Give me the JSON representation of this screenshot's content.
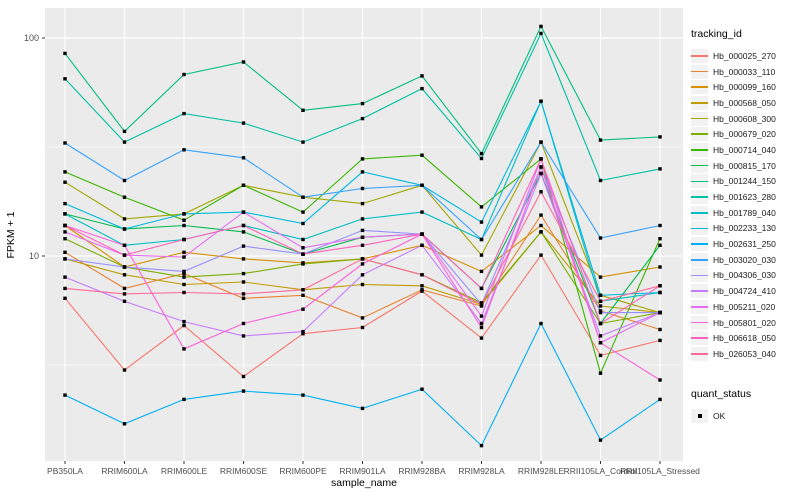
{
  "chart_data": {
    "type": "line",
    "title": "",
    "xlabel": "sample_name",
    "ylabel": "FPKM + 1",
    "y_scale": "log10",
    "ylim": [
      1.15,
      137
    ],
    "grid": true,
    "panel_bg": "#EBEBEB",
    "grid_color": "#FFFFFF",
    "point_color": "#000000",
    "tick_label_color": "#4D4D4D",
    "legend_position": "right",
    "legend_title": "tracking_id",
    "quant_legend": {
      "title": "quant_status",
      "items": [
        "OK"
      ]
    },
    "y_ticks": [
      {
        "value": 10,
        "label": "10"
      },
      {
        "value": 100,
        "label": "100"
      }
    ],
    "y_minor_ticks": [
      3.1623,
      31.623
    ],
    "categories": [
      "PB350LA",
      "RRIM600LA",
      "RRIM600LE",
      "RRIM600SE",
      "RRIM600PE",
      "RRIM901LA",
      "RRIM928BA",
      "RRIM928LA",
      "RRIM928LE",
      "RRII105LA_Control",
      "RRII105LA_Stressed"
    ],
    "series": [
      {
        "name": "Hb_000025_270",
        "color": "#F8766D",
        "values": [
          6.4,
          3.0,
          4.8,
          2.8,
          4.4,
          4.7,
          6.9,
          4.2,
          10.1,
          3.5,
          4.1
        ]
      },
      {
        "name": "Hb_000033_110",
        "color": "#EA8331",
        "values": [
          10.4,
          7.1,
          8.3,
          6.4,
          6.6,
          5.2,
          7.0,
          5.9,
          15.4,
          5.6,
          4.6
        ]
      },
      {
        "name": "Hb_000099_160",
        "color": "#D89000",
        "values": [
          13.8,
          8.9,
          10.4,
          9.7,
          9.3,
          9.7,
          11.2,
          8.5,
          13.8,
          8.0,
          8.9
        ]
      },
      {
        "name": "Hb_000568_050",
        "color": "#C09B00",
        "values": [
          9.7,
          8.2,
          7.4,
          7.6,
          7.0,
          7.4,
          7.3,
          6.0,
          12.9,
          5.9,
          5.5
        ]
      },
      {
        "name": "Hb_000608_300",
        "color": "#A3A500",
        "values": [
          21.8,
          14.8,
          15.6,
          21.1,
          18.6,
          17.4,
          21.1,
          10.1,
          33.3,
          6.6,
          5.5
        ]
      },
      {
        "name": "Hb_000679_020",
        "color": "#7CAE00",
        "values": [
          12.0,
          8.9,
          8.0,
          8.3,
          9.2,
          9.7,
          8.2,
          6.1,
          12.9,
          4.9,
          5.5
        ]
      },
      {
        "name": "Hb_000714_040",
        "color": "#39B600",
        "values": [
          24.3,
          18.6,
          14.6,
          21.1,
          15.9,
          27.9,
          29.0,
          16.8,
          27.9,
          2.9,
          12.0
        ]
      },
      {
        "name": "Hb_000815_170",
        "color": "#00BB4E",
        "values": [
          15.6,
          13.3,
          13.8,
          12.9,
          10.2,
          12.2,
          12.6,
          7.1,
          23.9,
          4.9,
          11.2
        ]
      },
      {
        "name": "Hb_001244_150",
        "color": "#00BF7D",
        "values": [
          85,
          37.3,
          68,
          77.6,
          46.6,
          50,
          67,
          29.5,
          113,
          34,
          35.2
        ]
      },
      {
        "name": "Hb_001623_280",
        "color": "#00C1A3",
        "values": [
          65,
          33.3,
          45,
          40.7,
          33.3,
          42.7,
          58.6,
          28,
          105,
          22.2,
          25.1
        ]
      },
      {
        "name": "Hb_001789_040",
        "color": "#00BFC4",
        "values": [
          15.6,
          11.2,
          11.9,
          13.8,
          11.9,
          14.8,
          15.9,
          11.9,
          51.3,
          6.2,
          6.8
        ]
      },
      {
        "name": "Hb_002233_130",
        "color": "#00BAE0",
        "values": [
          17.4,
          13.3,
          15.6,
          15.9,
          14.1,
          24.3,
          21.1,
          14.3,
          51.3,
          6.6,
          6.8
        ]
      },
      {
        "name": "Hb_002631_250",
        "color": "#00B0F6",
        "values": [
          2.3,
          1.7,
          2.2,
          2.4,
          2.3,
          2.0,
          2.45,
          1.35,
          4.9,
          1.43,
          2.2
        ]
      },
      {
        "name": "Hb_003020_030",
        "color": "#35A2FF",
        "values": [
          33,
          22.2,
          30.7,
          28.2,
          18.6,
          20.4,
          21.1,
          11.9,
          33.3,
          12.1,
          13.8
        ]
      },
      {
        "name": "Hb_004306_030",
        "color": "#9590FF",
        "values": [
          9.7,
          8.9,
          8.5,
          11.1,
          10.2,
          13.1,
          12.6,
          6.0,
          25.6,
          5.5,
          5.5
        ]
      },
      {
        "name": "Hb_004724_410",
        "color": "#C77CFF",
        "values": [
          8.0,
          6.2,
          5.0,
          4.3,
          4.5,
          8.2,
          11.2,
          4.9,
          23.9,
          4.3,
          5.5
        ]
      },
      {
        "name": "Hb_005211_020",
        "color": "#E76BF3",
        "values": [
          12.9,
          10.1,
          9.9,
          15.9,
          10.9,
          12.2,
          12.6,
          5.3,
          27.9,
          4.0,
          5.5
        ]
      },
      {
        "name": "Hb_005801_020",
        "color": "#FA62DB",
        "values": [
          13.8,
          11.2,
          3.75,
          4.9,
          5.7,
          9.2,
          12.6,
          4.7,
          25.6,
          4.0,
          2.7
        ]
      },
      {
        "name": "Hb_006618_050",
        "color": "#FF62BC",
        "values": [
          13.8,
          10.1,
          11.9,
          13.8,
          10.2,
          11.2,
          12.6,
          7.1,
          27.9,
          4.9,
          7.3
        ]
      },
      {
        "name": "Hb_026053_040",
        "color": "#FF6A98",
        "values": [
          7.1,
          6.7,
          6.8,
          6.7,
          7.0,
          9.7,
          8.2,
          6.0,
          19.7,
          6.2,
          7.3
        ]
      }
    ]
  }
}
